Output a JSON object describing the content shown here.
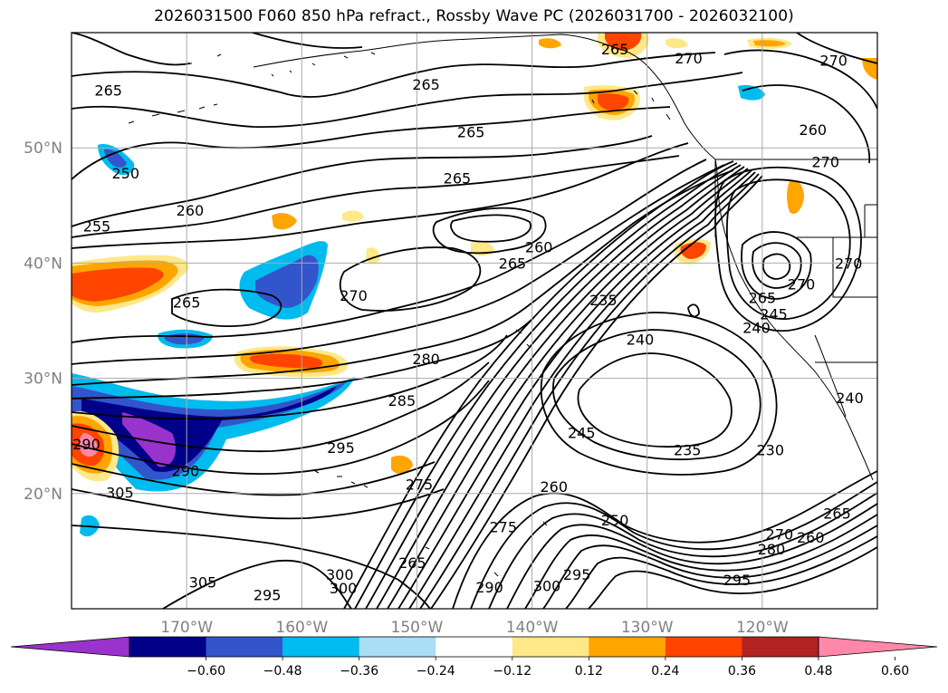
{
  "title": "2026031500 F060 850 hPa refract., Rossby Wave PC (2026031700 - 2026032100)",
  "map": {
    "lat_labels": [
      "50°N",
      "40°N",
      "30°N",
      "20°N"
    ],
    "lat_values": [
      50,
      40,
      30,
      20
    ],
    "lon_labels": [
      "170°W",
      "160°W",
      "150°W",
      "140°W",
      "130°W",
      "120°W"
    ],
    "lon_values": [
      -170,
      -160,
      -150,
      -140,
      -130,
      -120
    ],
    "gridline_color": "#aaaaaa",
    "tick_label_color": "#808080",
    "contour_labels": [
      {
        "text": "265",
        "lon": -176.8,
        "lat": 55.0
      },
      {
        "text": "250",
        "lon": -175.3,
        "lat": 47.8
      },
      {
        "text": "255",
        "lon": -177.8,
        "lat": 43.2
      },
      {
        "text": "260",
        "lon": -169.7,
        "lat": 44.6
      },
      {
        "text": "265",
        "lon": -170.0,
        "lat": 36.6
      },
      {
        "text": "270",
        "lon": -155.5,
        "lat": 37.2
      },
      {
        "text": "265",
        "lon": -149.2,
        "lat": 55.5
      },
      {
        "text": "265",
        "lon": -145.3,
        "lat": 51.4
      },
      {
        "text": "265",
        "lon": -146.5,
        "lat": 47.4
      },
      {
        "text": "260",
        "lon": -139.4,
        "lat": 41.4
      },
      {
        "text": "265",
        "lon": -141.7,
        "lat": 40.0
      },
      {
        "text": "265",
        "lon": -132.8,
        "lat": 58.6
      },
      {
        "text": "270",
        "lon": -126.4,
        "lat": 57.8
      },
      {
        "text": "270",
        "lon": -113.8,
        "lat": 57.6
      },
      {
        "text": "260",
        "lon": -115.6,
        "lat": 51.6
      },
      {
        "text": "270",
        "lon": -114.5,
        "lat": 48.8
      },
      {
        "text": "235",
        "lon": -133.8,
        "lat": 36.8
      },
      {
        "text": "240",
        "lon": -130.6,
        "lat": 33.4
      },
      {
        "text": "240",
        "lon": -120.5,
        "lat": 34.4
      },
      {
        "text": "265",
        "lon": -120.0,
        "lat": 37.0
      },
      {
        "text": "245",
        "lon": -119.0,
        "lat": 35.6
      },
      {
        "text": "270",
        "lon": -116.6,
        "lat": 38.2
      },
      {
        "text": "270",
        "lon": -112.5,
        "lat": 40.0
      },
      {
        "text": "280",
        "lon": -149.2,
        "lat": 31.7
      },
      {
        "text": "285",
        "lon": -151.3,
        "lat": 28.1
      },
      {
        "text": "295",
        "lon": -156.6,
        "lat": 24.0
      },
      {
        "text": "245",
        "lon": -135.7,
        "lat": 25.3
      },
      {
        "text": "235",
        "lon": -126.5,
        "lat": 23.8
      },
      {
        "text": "230",
        "lon": -119.3,
        "lat": 23.8
      },
      {
        "text": "240",
        "lon": -112.4,
        "lat": 28.3
      },
      {
        "text": "290",
        "lon": -178.7,
        "lat": 24.3
      },
      {
        "text": "305",
        "lon": -175.8,
        "lat": 20.1
      },
      {
        "text": "290",
        "lon": -170.1,
        "lat": 22.0
      },
      {
        "text": "275",
        "lon": -149.8,
        "lat": 20.8
      },
      {
        "text": "260",
        "lon": -138.1,
        "lat": 20.6
      },
      {
        "text": "250",
        "lon": -132.8,
        "lat": 17.7
      },
      {
        "text": "275",
        "lon": -142.5,
        "lat": 17.1
      },
      {
        "text": "265",
        "lon": -150.4,
        "lat": 14.0
      },
      {
        "text": "295",
        "lon": -136.1,
        "lat": 13.0
      },
      {
        "text": "300",
        "lon": -138.7,
        "lat": 12.0
      },
      {
        "text": "290",
        "lon": -143.7,
        "lat": 11.9
      },
      {
        "text": "300",
        "lon": -156.7,
        "lat": 13.0
      },
      {
        "text": "305",
        "lon": -168.6,
        "lat": 12.3
      },
      {
        "text": "295",
        "lon": -163.0,
        "lat": 11.2
      },
      {
        "text": "300",
        "lon": -156.4,
        "lat": 11.8
      },
      {
        "text": "265",
        "lon": -113.5,
        "lat": 18.3
      },
      {
        "text": "260",
        "lon": -115.8,
        "lat": 16.2
      },
      {
        "text": "270",
        "lon": -118.5,
        "lat": 16.5
      },
      {
        "text": "280",
        "lon": -119.2,
        "lat": 15.2
      },
      {
        "text": "295",
        "lon": -122.2,
        "lat": 12.5
      }
    ]
  },
  "colorbar": {
    "tick_labels": [
      "−0.60",
      "−0.48",
      "−0.36",
      "−0.24",
      "−0.12",
      "0.12",
      "0.24",
      "0.36",
      "0.48",
      "0.60"
    ],
    "colors": [
      "#9933cc",
      "#000088",
      "#3355cc",
      "#00bbee",
      "#aaddf6",
      "#ffffff",
      "#ffe888",
      "#ffa500",
      "#ff4400",
      "#b22222",
      "#ff88aa"
    ]
  }
}
